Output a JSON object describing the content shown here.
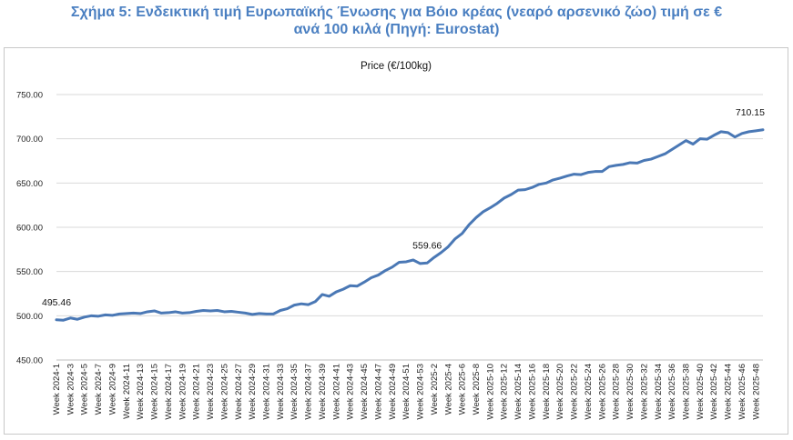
{
  "figure": {
    "title_line1": "Σχήμα 5: Ενδεικτική τιμή Ευρωπαϊκής Ένωσης για Βόιο κρέας (νεαρό αρσενικό ζώο) τιμή σε €",
    "title_line2": "ανά 100 κιλά (Πηγή: Eurostat)"
  },
  "chart_data": {
    "type": "line",
    "title": "Price (€/100kg)",
    "xlabel": "",
    "ylabel": "",
    "ylim": [
      450,
      750
    ],
    "yticks": [
      450,
      500,
      550,
      600,
      650,
      700,
      750
    ],
    "ytick_labels": [
      "450.00",
      "500.00",
      "550.00",
      "600.00",
      "650.00",
      "700.00",
      "750.00"
    ],
    "grid": "horizontal",
    "line_color": "#4a78b5",
    "x": [
      "Week 2024-1",
      "Week 2024-2",
      "Week 2024-3",
      "Week 2024-4",
      "Week 2024-5",
      "Week 2024-6",
      "Week 2024-7",
      "Week 2024-8",
      "Week 2024-9",
      "Week 2024-10",
      "Week 2024-11",
      "Week 2024-12",
      "Week 2024-13",
      "Week 2024-14",
      "Week 2024-15",
      "Week 2024-16",
      "Week 2024-17",
      "Week 2024-18",
      "Week 2024-19",
      "Week 2024-20",
      "Week 2024-21",
      "Week 2024-22",
      "Week 2024-23",
      "Week 2024-24",
      "Week 2024-25",
      "Week 2024-26",
      "Week 2024-27",
      "Week 2024-28",
      "Week 2024-29",
      "Week 2024-30",
      "Week 2024-31",
      "Week 2024-32",
      "Week 2024-33",
      "Week 2024-34",
      "Week 2024-35",
      "Week 2024-36",
      "Week 2024-37",
      "Week 2024-38",
      "Week 2024-39",
      "Week 2024-40",
      "Week 2024-41",
      "Week 2024-42",
      "Week 2024-43",
      "Week 2024-44",
      "Week 2024-45",
      "Week 2024-46",
      "Week 2024-47",
      "Week 2024-48",
      "Week 2024-49",
      "Week 2024-50",
      "Week 2024-51",
      "Week 2024-52",
      "Week 2024-53",
      "Week 2025-1",
      "Week 2025-2",
      "Week 2025-3",
      "Week 2025-4",
      "Week 2025-5",
      "Week 2025-6",
      "Week 2025-7",
      "Week 2025-8",
      "Week 2025-9",
      "Week 2025-10",
      "Week 2025-11",
      "Week 2025-12",
      "Week 2025-13",
      "Week 2025-14",
      "Week 2025-15",
      "Week 2025-16",
      "Week 2025-17",
      "Week 2025-18",
      "Week 2025-19",
      "Week 2025-20",
      "Week 2025-21",
      "Week 2025-22",
      "Week 2025-23",
      "Week 2025-24",
      "Week 2025-25",
      "Week 2025-26",
      "Week 2025-27",
      "Week 2025-28",
      "Week 2025-29",
      "Week 2025-30",
      "Week 2025-31",
      "Week 2025-32",
      "Week 2025-33",
      "Week 2025-34",
      "Week 2025-35",
      "Week 2025-36",
      "Week 2025-37",
      "Week 2025-38",
      "Week 2025-39",
      "Week 2025-40",
      "Week 2025-41",
      "Week 2025-42",
      "Week 2025-43",
      "Week 2025-44",
      "Week 2025-45",
      "Week 2025-46",
      "Week 2025-47",
      "Week 2025-48",
      "Week 2025-49"
    ],
    "x_tick_labels": [
      "Week 2024-1",
      "Week 2024-3",
      "Week 2024-5",
      "Week 2024-7",
      "Week 2024-9",
      "Week 2024-11",
      "Week 2024-13",
      "Week 2024-15",
      "Week 2024-17",
      "Week 2024-19",
      "Week 2024-21",
      "Week 2024-23",
      "Week 2024-25",
      "Week 2024-27",
      "Week 2024-29",
      "Week 2024-31",
      "Week 2024-33",
      "Week 2024-35",
      "Week 2024-37",
      "Week 2024-39",
      "Week 2024-41",
      "Week 2024-43",
      "Week 2024-45",
      "Week 2024-47",
      "Week 2024-49",
      "Week 2024-51",
      "Week 2024-53",
      "Week 2025-2",
      "Week 2025-4",
      "Week 2025-6",
      "Week 2025-8",
      "Week 2025-10",
      "Week 2025-12",
      "Week 2025-14",
      "Week 2025-16",
      "Week 2025-18",
      "Week 2025-20",
      "Week 2025-22",
      "Week 2025-24",
      "Week 2025-26",
      "Week 2025-28",
      "Week 2025-30",
      "Week 2025-32",
      "Week 2025-34",
      "Week 2025-36",
      "Week 2025-38",
      "Week 2025-40",
      "Week 2025-42",
      "Week 2025-44",
      "Week 2025-46",
      "Week 2025-48"
    ],
    "series": [
      {
        "values": [
          495.46,
          495,
          497.5,
          496,
          498.5,
          500,
          499.5,
          501,
          500.5,
          502,
          502.5,
          503,
          502.5,
          504.5,
          505.5,
          503,
          503.5,
          504.5,
          503,
          503.5,
          505,
          506,
          505.5,
          506,
          504.5,
          505,
          504,
          503,
          501.5,
          502.5,
          502,
          502,
          506,
          508,
          512,
          513.5,
          512.5,
          516,
          524,
          522,
          527,
          530,
          534,
          533.5,
          538,
          543,
          546,
          551,
          555,
          560.5,
          561,
          563,
          559,
          559.66,
          566,
          571.5,
          578,
          587,
          593,
          603,
          611,
          617.5,
          622,
          627,
          633,
          637,
          642,
          642.5,
          645,
          648.5,
          650,
          653.5,
          655.5,
          658,
          660,
          659.5,
          662,
          663,
          663,
          668.5,
          670,
          671,
          673,
          672.5,
          675.5,
          677,
          680,
          683,
          688,
          693,
          698,
          694,
          700,
          699.5,
          704,
          708,
          707,
          702,
          706,
          708,
          709,
          710.15
        ]
      }
    ],
    "data_labels": [
      {
        "x": "Week 2024-1",
        "value": 495.46,
        "text": "495.46"
      },
      {
        "x": "Week 2025-1",
        "value": 559.66,
        "text": "559.66"
      },
      {
        "x": "Week 2025-49",
        "value": 710.15,
        "text": "710.15"
      }
    ]
  }
}
